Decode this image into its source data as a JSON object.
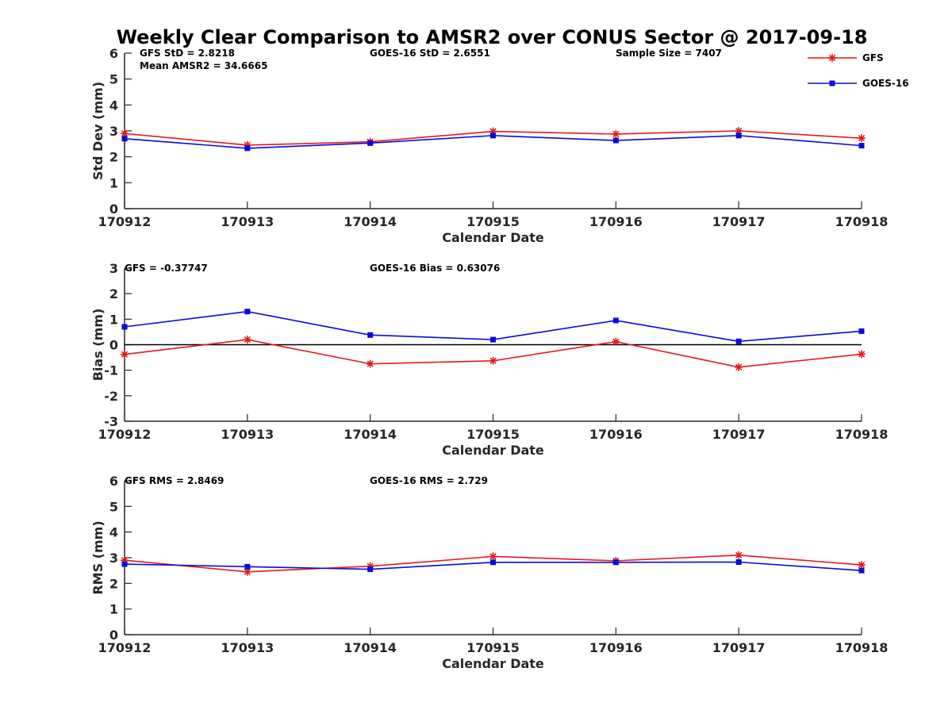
{
  "figure": {
    "title": "Weekly Clear Comparison to AMSR2 over CONUS Sector @ 2017-09-18"
  },
  "legend": {
    "placement": "top-right",
    "entries": [
      {
        "name": "GFS",
        "color": "#e41a1c",
        "marker": "asterisk"
      },
      {
        "name": "GOES-16",
        "color": "#0a0adc",
        "marker": "square"
      }
    ]
  },
  "chart_data": [
    {
      "type": "line",
      "xlabel": "Calendar Date",
      "ylabel": "Std Dev (mm)",
      "categories": [
        "170912",
        "170913",
        "170914",
        "170915",
        "170916",
        "170917",
        "170918"
      ],
      "ylim": [
        0,
        6
      ],
      "yticks": [
        "0",
        "1",
        "2",
        "3",
        "4",
        "5",
        "6"
      ],
      "zero_line": false,
      "series": [
        {
          "name": "GFS",
          "color": "#e41a1c",
          "marker": "asterisk",
          "values": [
            2.9,
            2.45,
            2.58,
            2.98,
            2.88,
            3.0,
            2.72
          ]
        },
        {
          "name": "GOES-16",
          "color": "#0a0adc",
          "marker": "square",
          "values": [
            2.7,
            2.33,
            2.53,
            2.82,
            2.63,
            2.82,
            2.43
          ]
        }
      ],
      "annotations": {
        "gfs": "GFS StD = 2.8218",
        "mean": "Mean AMSR2 = 34.6665",
        "goes": "GOES-16 StD = 2.6551",
        "sample": "Sample Size = 7407"
      }
    },
    {
      "type": "line",
      "xlabel": "Calendar Date",
      "ylabel": "Bias (mm)",
      "categories": [
        "170912",
        "170913",
        "170914",
        "170915",
        "170916",
        "170917",
        "170918"
      ],
      "ylim": [
        -3,
        3
      ],
      "yticks": [
        "-3",
        "-2",
        "-1",
        "0",
        "1",
        "2",
        "3"
      ],
      "zero_line": true,
      "series": [
        {
          "name": "GFS",
          "color": "#e41a1c",
          "marker": "asterisk",
          "values": [
            -0.38,
            0.2,
            -0.75,
            -0.63,
            0.12,
            -0.88,
            -0.37
          ]
        },
        {
          "name": "GOES-16",
          "color": "#0a0adc",
          "marker": "square",
          "values": [
            0.7,
            1.3,
            0.38,
            0.2,
            0.95,
            0.13,
            0.53
          ]
        }
      ],
      "annotations": {
        "gfs": "GFS = -0.37747",
        "goes": "GOES-16 Bias  = 0.63076"
      }
    },
    {
      "type": "line",
      "xlabel": "Calendar Date",
      "ylabel": "RMS (mm)",
      "categories": [
        "170912",
        "170913",
        "170914",
        "170915",
        "170916",
        "170917",
        "170918"
      ],
      "ylim": [
        0,
        6
      ],
      "yticks": [
        "0",
        "1",
        "2",
        "3",
        "4",
        "5",
        "6"
      ],
      "zero_line": false,
      "series": [
        {
          "name": "GFS",
          "color": "#e41a1c",
          "marker": "asterisk",
          "values": [
            2.9,
            2.45,
            2.67,
            3.05,
            2.88,
            3.1,
            2.72
          ]
        },
        {
          "name": "GOES-16",
          "color": "#0a0adc",
          "marker": "square",
          "values": [
            2.75,
            2.65,
            2.55,
            2.82,
            2.82,
            2.83,
            2.5
          ]
        }
      ],
      "annotations": {
        "gfs": "GFS RMS = 2.8469",
        "goes": "GOES-16 RMS = 2.729"
      }
    }
  ]
}
